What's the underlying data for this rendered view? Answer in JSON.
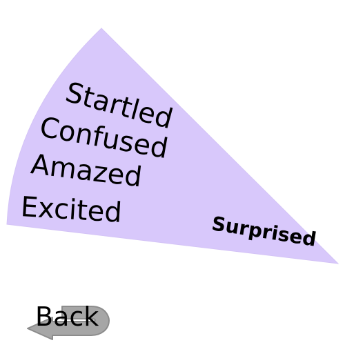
{
  "wedge": {
    "category": "Surprised",
    "fill_color": "#d8c8fb",
    "emotions": [
      "Startled",
      "Confused",
      "Amazed",
      "Excited"
    ]
  },
  "navigation": {
    "back_label": "Back",
    "back_icon": "u-turn-arrow-icon",
    "icon_color": "#a6a6a6"
  }
}
